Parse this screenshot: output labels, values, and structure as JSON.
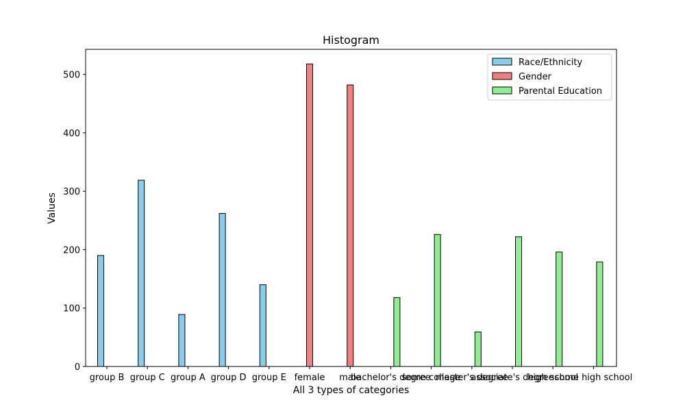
{
  "chart_data": {
    "type": "bar",
    "title": "Histogram",
    "xlabel": "All 3 types of categories",
    "ylabel": "Values",
    "ylim": [
      0,
      543
    ],
    "yticks": [
      0,
      100,
      200,
      300,
      400,
      500
    ],
    "grid": false,
    "legend_position": "top-right",
    "categories": [
      "group B",
      "group C",
      "group A",
      "group D",
      "group E",
      "female",
      "male",
      "bachelor's degree",
      "some college",
      "master's degree",
      "associate's degree",
      "high school",
      "some high school"
    ],
    "series": [
      {
        "name": "Race/Ethnicity",
        "color": "#87ceeb",
        "values": [
          190,
          319,
          89,
          262,
          140,
          0,
          0,
          0,
          0,
          0,
          0,
          0,
          0
        ]
      },
      {
        "name": "Gender",
        "color": "#f08080",
        "values": [
          0,
          0,
          0,
          0,
          0,
          518,
          482,
          0,
          0,
          0,
          0,
          0,
          0
        ]
      },
      {
        "name": "Parental Education",
        "color": "#90ee90",
        "values": [
          0,
          0,
          0,
          0,
          0,
          0,
          0,
          118,
          226,
          59,
          222,
          196,
          179
        ]
      }
    ]
  }
}
